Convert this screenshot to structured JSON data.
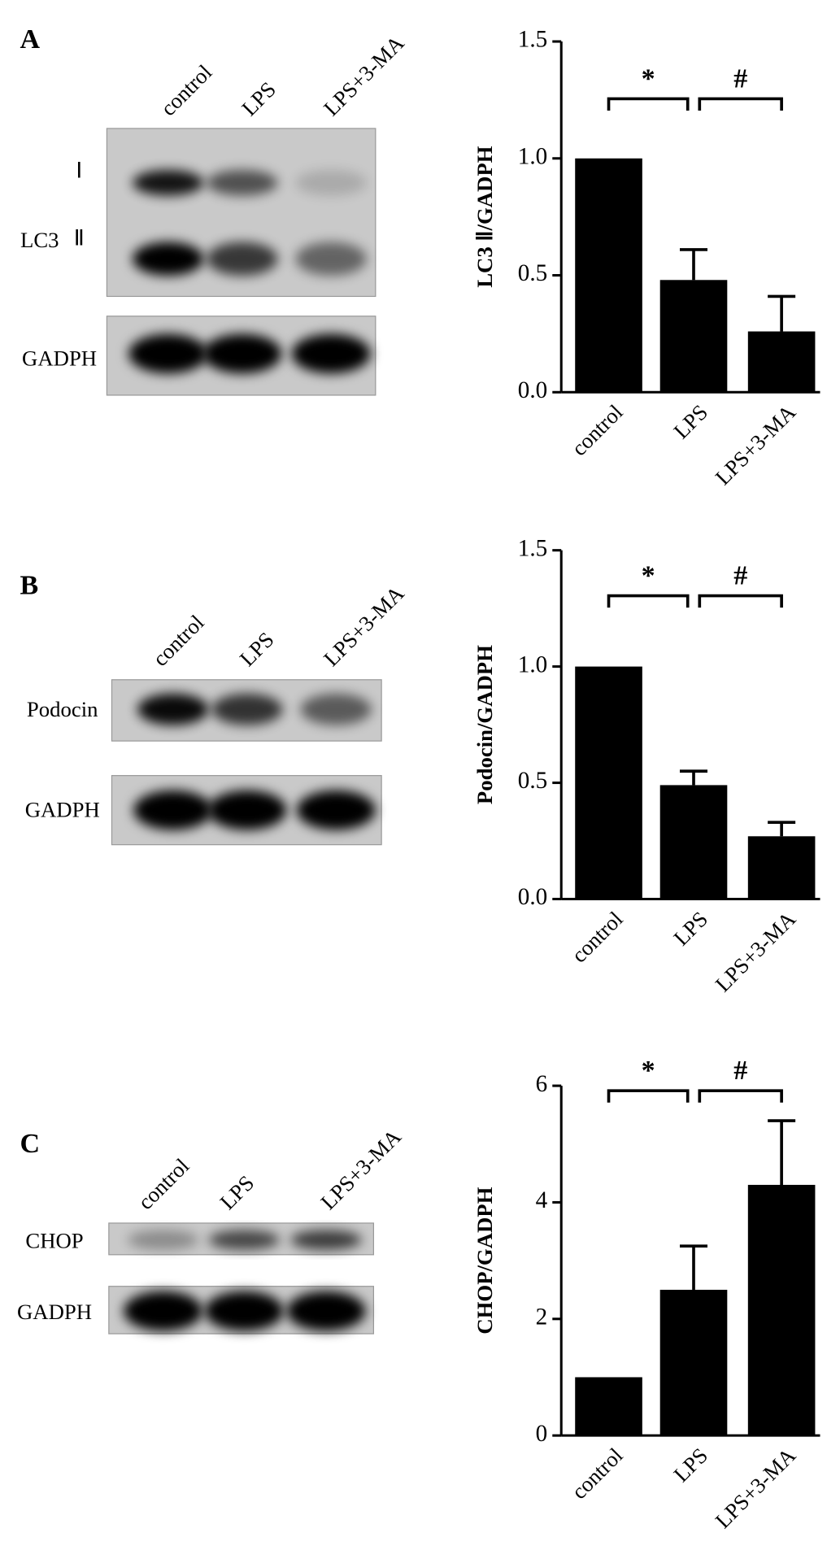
{
  "panels": [
    {
      "letter": "A",
      "lanes": [
        "control",
        "LPS",
        "LPS+3-MA"
      ],
      "protein": "LC3",
      "bands": [
        "Ⅰ",
        "Ⅱ"
      ],
      "loading": "GADPH"
    },
    {
      "letter": "B",
      "lanes": [
        "control",
        "LPS",
        "LPS+3-MA"
      ],
      "protein": "Podocin",
      "loading": "GADPH"
    },
    {
      "letter": "C",
      "lanes": [
        "control",
        "LPS",
        "LPS+3-MA"
      ],
      "protein": "CHOP",
      "loading": "GADPH"
    }
  ],
  "chart_data": [
    {
      "type": "bar",
      "y_label": "LC3 Ⅱ/GADPH",
      "categories": [
        "control",
        "LPS",
        "LPS+3-MA"
      ],
      "values": [
        1.0,
        0.48,
        0.26
      ],
      "errors": [
        0,
        0.13,
        0.15
      ],
      "color": "#000000",
      "ylim": [
        0,
        1.5
      ],
      "yticks": [
        {
          "value": 0,
          "label": "0.0"
        },
        {
          "value": 0.5,
          "label": "0.5"
        },
        {
          "value": 1,
          "label": "1.0"
        },
        {
          "value": 1.5,
          "label": "1.5"
        }
      ],
      "annotations": [
        "*",
        "#"
      ]
    },
    {
      "type": "bar",
      "y_label": "Podocin/GADPH",
      "categories": [
        "control",
        "LPS",
        "LPS+3-MA"
      ],
      "values": [
        1.0,
        0.49,
        0.27
      ],
      "errors": [
        0,
        0.06,
        0.06
      ],
      "color": "#000000",
      "ylim": [
        0,
        1.5
      ],
      "yticks": [
        {
          "value": 0,
          "label": "0.0"
        },
        {
          "value": 0.5,
          "label": "0.5"
        },
        {
          "value": 1,
          "label": "1.0"
        },
        {
          "value": 1.5,
          "label": "1.5"
        }
      ],
      "annotations": [
        "*",
        "#"
      ]
    },
    {
      "type": "bar",
      "y_label": "CHOP/GADPH",
      "categories": [
        "control",
        "LPS",
        "LPS+3-MA"
      ],
      "values": [
        1.0,
        2.5,
        4.3
      ],
      "errors": [
        0,
        0.75,
        1.1
      ],
      "color": "#000000",
      "ylim": [
        0,
        6
      ],
      "yticks": [
        0,
        2,
        4,
        6
      ],
      "annotations": [
        "*",
        "#"
      ]
    }
  ]
}
